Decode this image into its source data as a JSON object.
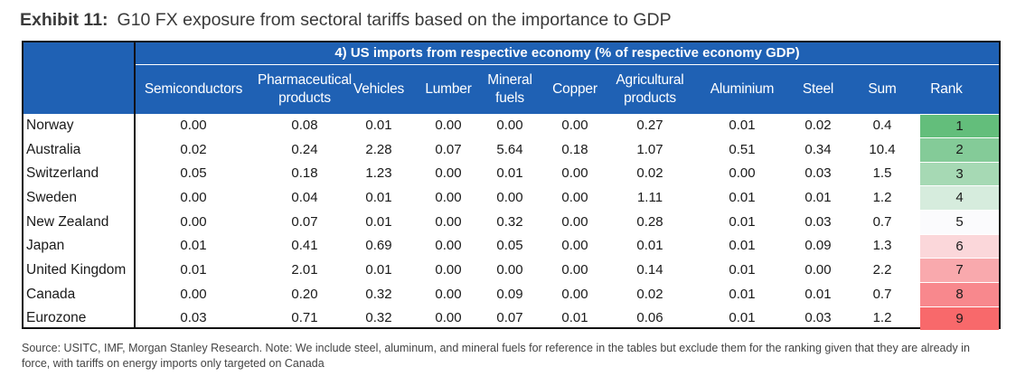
{
  "exhibit": {
    "label": "Exhibit 11:",
    "title": "G10 FX exposure from sectoral tariffs based on the importance to GDP"
  },
  "table": {
    "caption": "4) US imports from respective economy (% of respective economy GDP)",
    "columns": [
      "Semiconductors",
      "Pharmaceutical products",
      "Vehicles",
      "Lumber",
      "Mineral fuels",
      "Copper",
      "Agricultural products",
      "Aluminium",
      "Steel",
      "Sum",
      "Rank"
    ],
    "rows": [
      {
        "country": "Norway",
        "values": [
          "0.00",
          "0.08",
          "0.01",
          "0.00",
          "0.00",
          "0.00",
          "0.27",
          "0.01",
          "0.02",
          "0.4"
        ],
        "rank": "1",
        "rank_color": "#63be7b"
      },
      {
        "country": "Australia",
        "values": [
          "0.02",
          "0.24",
          "2.28",
          "0.07",
          "5.64",
          "0.18",
          "1.07",
          "0.51",
          "0.34",
          "10.4"
        ],
        "rank": "2",
        "rank_color": "#84cb98"
      },
      {
        "country": "Switzerland",
        "values": [
          "0.05",
          "0.18",
          "1.23",
          "0.00",
          "0.01",
          "0.00",
          "0.02",
          "0.00",
          "0.03",
          "1.5"
        ],
        "rank": "3",
        "rank_color": "#a6d9b4"
      },
      {
        "country": "Sweden",
        "values": [
          "0.00",
          "0.04",
          "0.01",
          "0.00",
          "0.00",
          "0.00",
          "1.11",
          "0.01",
          "0.01",
          "1.2"
        ],
        "rank": "4",
        "rank_color": "#d6ecdd"
      },
      {
        "country": "New Zealand",
        "values": [
          "0.00",
          "0.07",
          "0.01",
          "0.00",
          "0.32",
          "0.00",
          "0.28",
          "0.01",
          "0.03",
          "0.7"
        ],
        "rank": "5",
        "rank_color": "#fbfbfd"
      },
      {
        "country": "Japan",
        "values": [
          "0.01",
          "0.41",
          "0.69",
          "0.00",
          "0.05",
          "0.00",
          "0.01",
          "0.01",
          "0.09",
          "1.3"
        ],
        "rank": "6",
        "rank_color": "#fbd7da"
      },
      {
        "country": "United Kingdom",
        "values": [
          "0.01",
          "2.01",
          "0.01",
          "0.00",
          "0.00",
          "0.00",
          "0.14",
          "0.01",
          "0.00",
          "2.2"
        ],
        "rank": "7",
        "rank_color": "#f9a9ad"
      },
      {
        "country": "Canada",
        "values": [
          "0.00",
          "0.20",
          "0.32",
          "0.00",
          "0.09",
          "0.00",
          "0.02",
          "0.01",
          "0.01",
          "0.7"
        ],
        "rank": "8",
        "rank_color": "#f8888d"
      },
      {
        "country": "Eurozone",
        "values": [
          "0.03",
          "0.71",
          "0.32",
          "0.00",
          "0.07",
          "0.01",
          "0.06",
          "0.01",
          "0.03",
          "1.2"
        ],
        "rank": "9",
        "rank_color": "#f8696b"
      }
    ]
  },
  "source": "Source: USITC, IMF, Morgan Stanley Research. Note: We include steel, aluminum, and mineral fuels for reference in the tables but exclude them for the ranking given that they are already in force, with tariffs on energy imports only targeted on Canada"
}
